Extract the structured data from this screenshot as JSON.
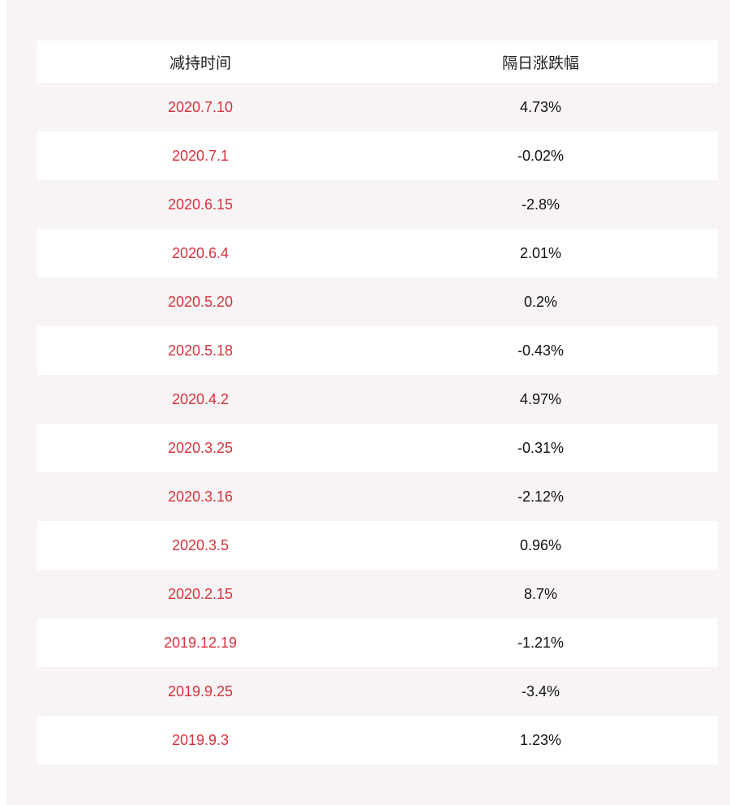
{
  "table": {
    "headers": [
      "减持时间",
      "隔日涨跌幅"
    ],
    "rows": [
      {
        "date": "2020.7.10",
        "change": "4.73%"
      },
      {
        "date": "2020.7.1",
        "change": "-0.02%"
      },
      {
        "date": "2020.6.15",
        "change": "-2.8%"
      },
      {
        "date": "2020.6.4",
        "change": "2.01%"
      },
      {
        "date": "2020.5.20",
        "change": "0.2%"
      },
      {
        "date": "2020.5.18",
        "change": "-0.43%"
      },
      {
        "date": "2020.4.2",
        "change": "4.97%"
      },
      {
        "date": "2020.3.25",
        "change": "-0.31%"
      },
      {
        "date": "2020.3.16",
        "change": "-2.12%"
      },
      {
        "date": "2020.3.5",
        "change": "0.96%"
      },
      {
        "date": "2020.2.15",
        "change": "8.7%"
      },
      {
        "date": "2019.12.19",
        "change": "-1.21%"
      },
      {
        "date": "2019.9.25",
        "change": "-3.4%"
      },
      {
        "date": "2019.9.3",
        "change": "1.23%"
      }
    ]
  },
  "colors": {
    "panel_bg": "#f8f4f5",
    "row_alt_bg": "#ffffff",
    "date_text": "#d9323c",
    "value_text": "#111111"
  }
}
